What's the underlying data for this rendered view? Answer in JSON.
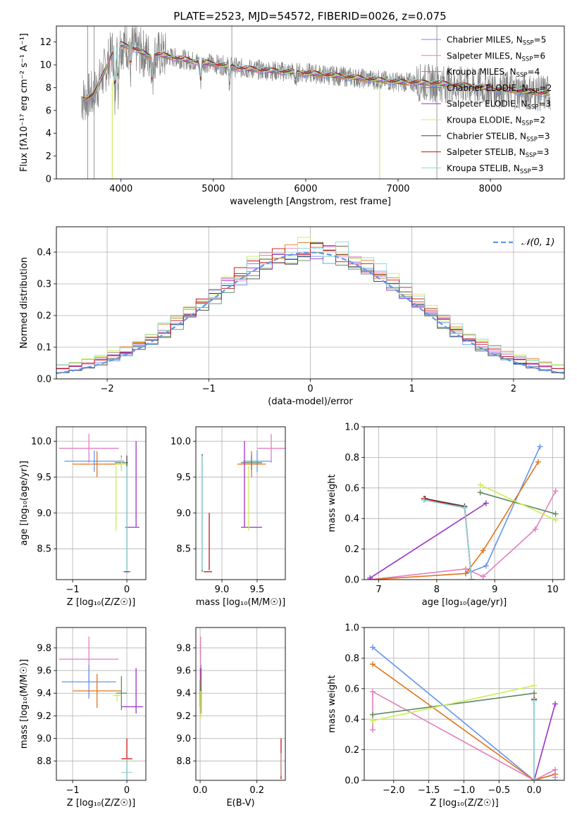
{
  "title": "PLATE=2523, MJD=54572, FIBERID=0026, z=0.075",
  "colors": {
    "Chabrier MILES": "#6495ed",
    "Salpeter MILES": "#e37fbd",
    "Kroupa MILES": "#e0741a",
    "Chabrier ELODIE": "#5f8a5f",
    "Salpeter ELODIE": "#9a32c7",
    "Kroupa ELODIE": "#ccee55",
    "Chabrier STELIB": "#444444",
    "Salpeter STELIB": "#c81414",
    "Kroupa STELIB": "#8fd8d8",
    "data": "#808080"
  },
  "chart_data": [
    {
      "id": "spectrum",
      "type": "line",
      "xlabel": "wavelength [Angstrom, rest frame]",
      "ylabel": "Flux [fλ10⁻¹⁷ erg cm⁻² s⁻¹ A⁻¹]",
      "xlim": [
        3300,
        8800
      ],
      "ylim": [
        0,
        13.4
      ],
      "xticks": [
        4000,
        5000,
        6000,
        7000,
        8000
      ],
      "yticks": [
        0,
        2,
        4,
        6,
        8,
        10,
        12
      ],
      "legend": {
        "placement": "top-right",
        "entries": [
          {
            "name": "Chabrier MILES",
            "n": "5"
          },
          {
            "name": "Salpeter MILES",
            "n": "6"
          },
          {
            "name": "Kroupa MILES",
            "n": "4"
          },
          {
            "name": "Chabrier ELODIE",
            "n": "2"
          },
          {
            "name": "Salpeter ELODIE",
            "n": "3"
          },
          {
            "name": "Kroupa ELODIE",
            "n": "2"
          },
          {
            "name": "Chabrier STELIB",
            "n": "3"
          },
          {
            "name": "Salpeter STELIB",
            "n": "3"
          },
          {
            "name": "Kroupa STELIB",
            "n": "3"
          }
        ]
      },
      "continuum": {
        "x": [
          3600,
          3700,
          3800,
          3900,
          4000,
          4100,
          4200,
          4300,
          4400,
          4600,
          4800,
          5000,
          5300,
          5600,
          6000,
          6500,
          7000,
          7400,
          7800,
          8200,
          8600
        ],
        "y": [
          7.0,
          7.4,
          9.0,
          11.0,
          11.8,
          11.6,
          11.2,
          10.8,
          10.9,
          10.6,
          10.3,
          10.1,
          9.7,
          9.5,
          9.3,
          8.9,
          8.5,
          8.4,
          8.1,
          7.8,
          7.5
        ]
      }
    },
    {
      "id": "residuals",
      "type": "line",
      "xlabel": "(data-model)/error",
      "ylabel": "Normed distribution",
      "xlim": [
        -2.5,
        2.5
      ],
      "ylim": [
        0,
        0.48
      ],
      "xticks": [
        -2,
        -1,
        0,
        1,
        2
      ],
      "yticks": [
        0.0,
        0.1,
        0.2,
        0.3,
        0.4
      ],
      "grid": true,
      "legend": {
        "placement": "top-right",
        "label": "𝒩(0, 1)"
      }
    },
    {
      "id": "age_vs_Z",
      "type": "scatter",
      "xlabel": "Z [log₁₀(Z/Z☉)]",
      "ylabel": "age  [log₁₀(age/yr)]",
      "xlim": [
        -1.3,
        0.35
      ],
      "ylim": [
        8.07,
        10.2
      ],
      "xticks": [
        -1,
        0
      ],
      "yticks": [
        8.5,
        9.0,
        9.5,
        10.0
      ],
      "grid": true,
      "errorbars": [
        {
          "model": "Salpeter MILES",
          "x": -0.7,
          "xerr": 0.55,
          "y": 9.9,
          "yerr": 0.2
        },
        {
          "model": "Chabrier MILES",
          "x": -0.6,
          "xerr": 0.55,
          "y": 9.72,
          "yerr": 0.15
        },
        {
          "model": "Kroupa MILES",
          "x": -0.55,
          "xerr": 0.45,
          "y": 9.68,
          "yerr": 0.18
        },
        {
          "model": "Chabrier ELODIE",
          "x": -0.1,
          "xerr": 0.12,
          "y": 9.7,
          "yerr": 0.1
        },
        {
          "model": "Kroupa ELODIE",
          "x": -0.1,
          "xerr": 0.1,
          "y": 9.68,
          "yerr": 0.1
        },
        {
          "model": "Kroupa ELODIE",
          "x": -0.2,
          "xerr": 0.0,
          "y": 9.2,
          "yerr": 0.45
        },
        {
          "model": "Salpeter ELODIE",
          "x": 0.1,
          "xerr": 0.13,
          "y": 8.8,
          "yerr": 0.0
        },
        {
          "model": "Salpeter ELODIE",
          "x": 0.17,
          "xerr": 0.0,
          "y": 9.4,
          "yerr": 0.6
        },
        {
          "model": "Chabrier STELIB",
          "x": 0.0,
          "xerr": 0.0,
          "y": 9.0,
          "yerr": 0.8
        },
        {
          "model": "Kroupa STELIB",
          "x": 0.0,
          "xerr": 0.08,
          "y": 8.18,
          "yerr": 0.0
        },
        {
          "model": "Kroupa STELIB",
          "x": 0.0,
          "xerr": 0.0,
          "y": 8.9,
          "yerr": 0.75
        },
        {
          "model": "Salpeter STELIB",
          "x": 0.0,
          "xerr": 0.05,
          "y": 8.18,
          "yerr": 0.0
        }
      ]
    },
    {
      "id": "age_vs_mass",
      "type": "scatter",
      "xlabel": "mass [log₁₀(M/M☉)]",
      "ylabel": "",
      "xlim": [
        8.63,
        9.9
      ],
      "ylim": [
        8.07,
        10.2
      ],
      "xticks": [
        9.0,
        9.5
      ],
      "yticks": [
        8.5,
        9.0,
        9.5,
        10.0
      ],
      "grid": true,
      "errorbars": [
        {
          "model": "Salpeter MILES",
          "x": 9.7,
          "xerr": 0.2,
          "y": 9.9,
          "yerr": 0.2
        },
        {
          "model": "Chabrier MILES",
          "x": 9.5,
          "xerr": 0.2,
          "y": 9.72,
          "yerr": 0.15
        },
        {
          "model": "Kroupa MILES",
          "x": 9.42,
          "xerr": 0.2,
          "y": 9.68,
          "yerr": 0.18
        },
        {
          "model": "Chabrier ELODIE",
          "x": 9.42,
          "xerr": 0.15,
          "y": 9.7,
          "yerr": 0.1
        },
        {
          "model": "Salpeter ELODIE",
          "x": 9.42,
          "xerr": 0.15,
          "y": 8.8,
          "yerr": 0.0
        },
        {
          "model": "Salpeter ELODIE",
          "x": 9.32,
          "xerr": 0.0,
          "y": 9.4,
          "yerr": 0.6
        },
        {
          "model": "Kroupa ELODIE",
          "x": 9.38,
          "xerr": 0.0,
          "y": 9.2,
          "yerr": 0.45
        },
        {
          "model": "Chabrier STELIB",
          "x": 8.72,
          "xerr": 0.0,
          "y": 9.0,
          "yerr": 0.82
        },
        {
          "model": "Kroupa STELIB",
          "x": 8.72,
          "xerr": 0.0,
          "y": 9.0,
          "yerr": 0.8
        },
        {
          "model": "Salpeter STELIB",
          "x": 8.82,
          "xerr": 0.0,
          "y": 8.6,
          "yerr": 0.4
        },
        {
          "model": "Salpeter STELIB",
          "x": 8.8,
          "xerr": 0.06,
          "y": 8.18,
          "yerr": 0.0
        }
      ]
    },
    {
      "id": "weight_vs_age",
      "type": "line",
      "xlabel": "age  [log₁₀(age/yr)]",
      "ylabel": "mass weight",
      "xlim": [
        6.75,
        10.2
      ],
      "ylim": [
        0,
        1
      ],
      "xticks": [
        7,
        8,
        9,
        10
      ],
      "yticks": [
        0.0,
        0.2,
        0.4,
        0.6,
        0.8,
        1.0
      ],
      "grid": true,
      "series": [
        {
          "model": "Chabrier MILES",
          "x": [
            8.5,
            8.85,
            9.78
          ],
          "y": [
            0.04,
            0.09,
            0.87
          ]
        },
        {
          "model": "Salpeter MILES",
          "x": [
            6.85,
            8.5,
            8.8,
            9.7,
            10.05
          ],
          "y": [
            0.0,
            0.07,
            0.02,
            0.33,
            0.58
          ]
        },
        {
          "model": "Kroupa MILES",
          "x": [
            6.85,
            8.5,
            8.8,
            9.75
          ],
          "y": [
            0.0,
            0.04,
            0.19,
            0.77
          ]
        },
        {
          "model": "Chabrier ELODIE",
          "x": [
            8.75,
            10.05
          ],
          "y": [
            0.57,
            0.43
          ]
        },
        {
          "model": "Salpeter ELODIE",
          "x": [
            6.85,
            8.85
          ],
          "y": [
            0.01,
            0.5
          ]
        },
        {
          "model": "Kroupa ELODIE",
          "x": [
            8.75,
            10.05
          ],
          "y": [
            0.62,
            0.39
          ]
        },
        {
          "model": "Chabrier STELIB",
          "x": [
            7.8,
            8.48,
            8.6
          ],
          "y": [
            0.53,
            0.48,
            0.0
          ]
        },
        {
          "model": "Salpeter STELIB",
          "x": [
            7.78,
            8.48,
            8.6
          ],
          "y": [
            0.53,
            0.47,
            0.0
          ]
        },
        {
          "model": "Kroupa STELIB",
          "x": [
            7.78,
            8.48,
            8.6
          ],
          "y": [
            0.52,
            0.47,
            0.0
          ]
        }
      ]
    },
    {
      "id": "mass_vs_Z",
      "type": "scatter",
      "xlabel": "Z [log₁₀(Z/Z☉)]",
      "ylabel": "mass [log₁₀(M/M☉)]",
      "xlim": [
        -1.3,
        0.35
      ],
      "ylim": [
        8.63,
        9.98
      ],
      "xticks": [
        -1,
        0
      ],
      "yticks": [
        8.8,
        9.0,
        9.2,
        9.4,
        9.6,
        9.8
      ],
      "grid": true,
      "errorbars": [
        {
          "model": "Salpeter MILES",
          "x": -0.7,
          "xerr": 0.55,
          "y": 9.7,
          "yerr": 0.2
        },
        {
          "model": "Chabrier MILES",
          "x": -0.7,
          "xerr": 0.5,
          "y": 9.5,
          "yerr": 0.15
        },
        {
          "model": "Kroupa MILES",
          "x": -0.55,
          "xerr": 0.45,
          "y": 9.42,
          "yerr": 0.15
        },
        {
          "model": "Chabrier ELODIE",
          "x": -0.1,
          "xerr": 0.1,
          "y": 9.4,
          "yerr": 0.15
        },
        {
          "model": "Kroupa ELODIE",
          "x": -0.18,
          "xerr": 0.08,
          "y": 9.38,
          "yerr": 0.05
        },
        {
          "model": "Salpeter ELODIE",
          "x": 0.1,
          "xerr": 0.2,
          "y": 9.28,
          "yerr": 0.0
        },
        {
          "model": "Salpeter ELODIE",
          "x": 0.17,
          "xerr": 0.0,
          "y": 9.42,
          "yerr": 0.2
        },
        {
          "model": "Salpeter STELIB",
          "x": 0.0,
          "xerr": 0.1,
          "y": 8.82,
          "yerr": 0.18
        },
        {
          "model": "Kroupa STELIB",
          "x": 0.0,
          "xerr": 0.1,
          "y": 8.7,
          "yerr": 0.12
        }
      ]
    },
    {
      "id": "mass_vs_ebv",
      "type": "scatter",
      "xlabel": "E(B-V)",
      "ylabel": "",
      "xlim": [
        -0.015,
        0.3
      ],
      "ylim": [
        8.63,
        9.98
      ],
      "xticks": [
        0.0,
        0.2
      ],
      "yticks": [
        8.8,
        9.0,
        9.2,
        9.4,
        9.6,
        9.8
      ],
      "grid": true,
      "errorbars": [
        {
          "model": "Salpeter MILES",
          "x": 0.002,
          "xerr": 0.0,
          "y": 9.7,
          "yerr": 0.2
        },
        {
          "model": "Chabrier MILES",
          "x": 0.003,
          "xerr": 0.0,
          "y": 9.5,
          "yerr": 0.15
        },
        {
          "model": "Kroupa MILES",
          "x": 0.004,
          "xerr": 0.0,
          "y": 9.42,
          "yerr": 0.2
        },
        {
          "model": "Salpeter ELODIE",
          "x": 0.001,
          "xerr": 0.0,
          "y": 9.42,
          "yerr": 0.2
        },
        {
          "model": "Chabrier ELODIE",
          "x": 0.0,
          "xerr": 0.0,
          "y": 9.4,
          "yerr": 0.12
        },
        {
          "model": "Kroupa ELODIE",
          "x": 0.002,
          "xerr": 0.0,
          "y": 9.3,
          "yerr": 0.12
        },
        {
          "model": "Salpeter STELIB",
          "x": 0.285,
          "xerr": 0.0,
          "y": 8.82,
          "yerr": 0.18
        },
        {
          "model": "Kroupa STELIB",
          "x": 0.286,
          "xerr": 0.0,
          "y": 8.77,
          "yerr": 0.1
        }
      ]
    },
    {
      "id": "weight_vs_Z",
      "type": "line",
      "xlabel": "Z [log₁₀(Z/Z☉)]",
      "ylabel": "mass weight",
      "xlim": [
        -2.42,
        0.43
      ],
      "ylim": [
        0,
        1
      ],
      "xticks": [
        -2.0,
        -1.5,
        -1.0,
        -0.5,
        0.0,
        0.5
      ],
      "yticks": [
        0.0,
        0.2,
        0.4,
        0.6,
        0.8,
        1.0
      ],
      "grid": true,
      "series": [
        {
          "model": "Chabrier MILES",
          "x": [
            -2.3,
            0.0,
            0.3
          ],
          "y": [
            0.87,
            0.0,
            0.04
          ]
        },
        {
          "model": "Kroupa MILES",
          "x": [
            -2.3,
            0.0,
            0.3
          ],
          "y": [
            0.76,
            0.0,
            0.04
          ]
        },
        {
          "model": "Salpeter MILES",
          "x": [
            -2.3,
            -2.3,
            0.0,
            0.3,
            0.3
          ],
          "y": [
            0.33,
            0.58,
            0.0,
            0.07,
            0.02
          ]
        },
        {
          "model": "Chabrier ELODIE",
          "x": [
            -2.3,
            0.0
          ],
          "y": [
            0.43,
            0.57
          ]
        },
        {
          "model": "Kroupa ELODIE",
          "x": [
            -2.3,
            0.0
          ],
          "y": [
            0.39,
            0.62
          ]
        },
        {
          "model": "Salpeter ELODIE",
          "x": [
            0.0,
            0.3
          ],
          "y": [
            0.0,
            0.5
          ]
        },
        {
          "model": "Chabrier STELIB",
          "x": [
            0.0,
            0.0,
            0.3
          ],
          "y": [
            0.53,
            0.0,
            0.0
          ]
        },
        {
          "model": "Salpeter STELIB",
          "x": [
            0.0,
            0.0
          ],
          "y": [
            0.53,
            0.0
          ]
        },
        {
          "model": "Kroupa STELIB",
          "x": [
            0.0,
            0.0,
            0.3
          ],
          "y": [
            0.52,
            0.0,
            0.0
          ]
        }
      ]
    }
  ]
}
